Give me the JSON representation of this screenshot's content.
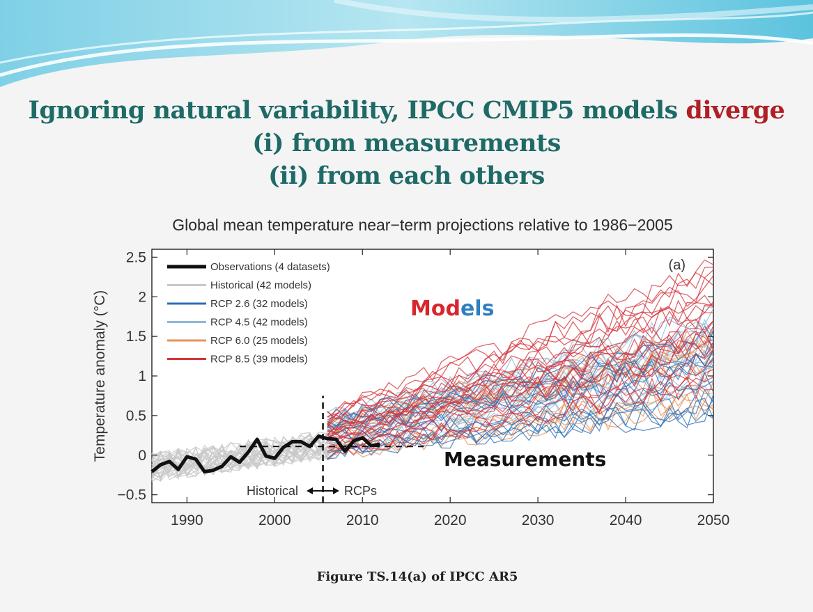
{
  "slide": {
    "title_line1_part1": "Ignoring natural variability, IPCC CMIP5 models",
    "title_line1_accent": "diverge",
    "title_line2": "(i) from measurements",
    "title_line3": "(ii) from each others",
    "caption": "Figure TS.14(a) of IPCC AR5"
  },
  "colors": {
    "title": "#1e6a67",
    "accent": "#b01f25",
    "observations": "#111111",
    "historical": "#c8c8c8",
    "rcp26": "#2c6fb6",
    "rcp45": "#8fb8da",
    "rcp60": "#e8935a",
    "rcp85": "#d4333b"
  },
  "chart_data": {
    "type": "line",
    "title": "Global mean temperature near−term projections relative to 1986−2005",
    "ylabel": "Temperature anomaly (°C)",
    "xlabel": "",
    "panel_label": "(a)",
    "xlim": [
      1986,
      2050
    ],
    "ylim": [
      -0.6,
      2.6
    ],
    "xticks": [
      1990,
      2000,
      2010,
      2020,
      2030,
      2040,
      2050
    ],
    "yticks": [
      -0.5,
      0,
      0.5,
      1,
      1.5,
      2,
      2.5
    ],
    "ytick_labels": [
      "−0.5",
      "0",
      "0.5",
      "1",
      "1.5",
      "2",
      "2.5"
    ],
    "grid": false,
    "legend_position": "top-left",
    "legend": [
      {
        "label": "Observations (4 datasets)",
        "color": "#111111",
        "key": "observations"
      },
      {
        "label": "Historical (42 models)",
        "color": "#c8c8c8",
        "key": "historical"
      },
      {
        "label": "RCP 2.6 (32 models)",
        "color": "#2c6fb6",
        "key": "rcp26"
      },
      {
        "label": "RCP 4.5 (42 models)",
        "color": "#8fb8da",
        "key": "rcp45"
      },
      {
        "label": "RCP 6.0 (25 models)",
        "color": "#e8935a",
        "key": "rcp60"
      },
      {
        "label": "RCP 8.5 (39 models)",
        "color": "#d4333b",
        "key": "rcp85"
      }
    ],
    "observations": {
      "x": [
        1986,
        1987,
        1988,
        1989,
        1990,
        1991,
        1992,
        1993,
        1994,
        1995,
        1996,
        1997,
        1998,
        1999,
        2000,
        2001,
        2002,
        2003,
        2004,
        2005,
        2006,
        2007,
        2008,
        2009,
        2010,
        2011,
        2012
      ],
      "y": [
        -0.21,
        -0.12,
        -0.08,
        -0.18,
        -0.02,
        -0.05,
        -0.21,
        -0.19,
        -0.14,
        -0.02,
        -0.09,
        0.04,
        0.2,
        -0.01,
        -0.04,
        0.1,
        0.17,
        0.17,
        0.11,
        0.24,
        0.21,
        0.2,
        0.05,
        0.18,
        0.22,
        0.12,
        0.14
      ]
    },
    "scenario_envelopes": [
      {
        "scenario": "RCP 2.6",
        "x": [
          2006,
          2050
        ],
        "low": [
          -0.05,
          0.4
        ],
        "high": [
          0.5,
          1.5
        ]
      },
      {
        "scenario": "RCP 4.5",
        "x": [
          2006,
          2050
        ],
        "low": [
          -0.05,
          0.55
        ],
        "high": [
          0.5,
          1.8
        ]
      },
      {
        "scenario": "RCP 6.0",
        "x": [
          2006,
          2050
        ],
        "low": [
          -0.05,
          0.5
        ],
        "high": [
          0.5,
          1.7
        ]
      },
      {
        "scenario": "RCP 8.5",
        "x": [
          2006,
          2050
        ],
        "low": [
          0.0,
          0.9
        ],
        "high": [
          0.6,
          2.5
        ]
      }
    ],
    "reference_lines": [
      {
        "type": "horizontal",
        "y": 0.11,
        "x_range": [
          1996,
          2017
        ],
        "style": "dashed"
      },
      {
        "type": "vertical",
        "x": 2005.5,
        "y_range": [
          -0.6,
          0.75
        ],
        "style": "dashed"
      }
    ],
    "annotations": {
      "historical_label": "Historical",
      "rcps_label": "RCPs",
      "models_label_red": "Mod",
      "models_label_blue": "els",
      "measurements_label": "Measurements"
    }
  }
}
